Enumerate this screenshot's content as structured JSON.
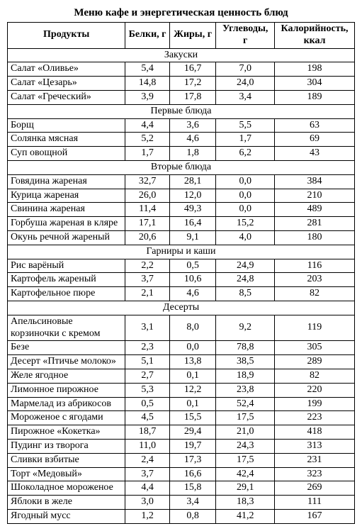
{
  "title": "Меню кафе и энергетическая ценность блюд",
  "columns": [
    "Продукты",
    "Белки, г",
    "Жиры, г",
    "Углеводы, г",
    "Калорийность, ккал"
  ],
  "sections": [
    {
      "name": "Закуски",
      "rows": [
        {
          "name": "Салат «Оливье»",
          "p": "5,4",
          "f": "16,7",
          "c": "7,0",
          "k": "198"
        },
        {
          "name": "Салат «Цезарь»",
          "p": "14,8",
          "f": "17,2",
          "c": "24,0",
          "k": "304"
        },
        {
          "name": "Салат «Греческий»",
          "p": "3,9",
          "f": "17,8",
          "c": "3,4",
          "k": "189"
        }
      ]
    },
    {
      "name": "Первые блюда",
      "rows": [
        {
          "name": "Борщ",
          "p": "4,4",
          "f": "3,6",
          "c": "5,5",
          "k": "63"
        },
        {
          "name": "Солянка мясная",
          "p": "5,2",
          "f": "4,6",
          "c": "1,7",
          "k": "69"
        },
        {
          "name": "Суп овощной",
          "p": "1,7",
          "f": "1,8",
          "c": "6,2",
          "k": "43"
        }
      ]
    },
    {
      "name": "Вторые блюда",
      "rows": [
        {
          "name": "Говядина жареная",
          "p": "32,7",
          "f": "28,1",
          "c": "0,0",
          "k": "384"
        },
        {
          "name": "Курица жареная",
          "p": "26,0",
          "f": "12,0",
          "c": "0,0",
          "k": "210"
        },
        {
          "name": "Свинина жареная",
          "p": "11,4",
          "f": "49,3",
          "c": "0,0",
          "k": "489"
        },
        {
          "name": "Горбуша жареная в кляре",
          "p": "17,1",
          "f": "16,4",
          "c": "15,2",
          "k": "281"
        },
        {
          "name": "Окунь речной жареный",
          "p": "20,6",
          "f": "9,1",
          "c": "4,0",
          "k": "180"
        }
      ]
    },
    {
      "name": "Гарниры и каши",
      "rows": [
        {
          "name": "Рис варёный",
          "p": "2,2",
          "f": "0,5",
          "c": "24,9",
          "k": "116"
        },
        {
          "name": "Картофель жареный",
          "p": "3,7",
          "f": "10,6",
          "c": "24,8",
          "k": "203"
        },
        {
          "name": "Картофельное пюре",
          "p": "2,1",
          "f": "4,6",
          "c": "8,5",
          "k": "82"
        }
      ]
    },
    {
      "name": "Десерты",
      "rows": [
        {
          "name": "Апельсиновые корзиночки с кремом",
          "p": "3,1",
          "f": "8,0",
          "c": "9,2",
          "k": "119"
        },
        {
          "name": "Безе",
          "p": "2,3",
          "f": "0,0",
          "c": "78,8",
          "k": "305"
        },
        {
          "name": "Десерт «Птичье молоко»",
          "p": "5,1",
          "f": "13,8",
          "c": "38,5",
          "k": "289"
        },
        {
          "name": "Желе ягодное",
          "p": "2,7",
          "f": "0,1",
          "c": "18,9",
          "k": "82"
        },
        {
          "name": "Лимонное пирожное",
          "p": "5,3",
          "f": "12,2",
          "c": "23,8",
          "k": "220"
        },
        {
          "name": "Мармелад из абрикосов",
          "p": "0,5",
          "f": "0,1",
          "c": "52,4",
          "k": "199"
        },
        {
          "name": "Мороженое с ягодами",
          "p": "4,5",
          "f": "15,5",
          "c": "17,5",
          "k": "223"
        },
        {
          "name": "Пирожное «Кокетка»",
          "p": "18,7",
          "f": "29,4",
          "c": "21,0",
          "k": "418"
        },
        {
          "name": "Пудинг из творога",
          "p": "11,0",
          "f": "19,7",
          "c": "24,3",
          "k": "313"
        },
        {
          "name": "Сливки взбитые",
          "p": "2,4",
          "f": "17,3",
          "c": "17,5",
          "k": "231"
        },
        {
          "name": "Торт «Медовый»",
          "p": "3,7",
          "f": "16,6",
          "c": "42,4",
          "k": "323"
        },
        {
          "name": "Шоколадное мороженое",
          "p": "4,4",
          "f": "15,8",
          "c": "29,1",
          "k": "269"
        },
        {
          "name": "Яблоки в желе",
          "p": "3,0",
          "f": "3,4",
          "c": "18,3",
          "k": "111"
        },
        {
          "name": "Ягодный мусс",
          "p": "1,2",
          "f": "0,8",
          "c": "41,2",
          "k": "167"
        }
      ]
    }
  ]
}
